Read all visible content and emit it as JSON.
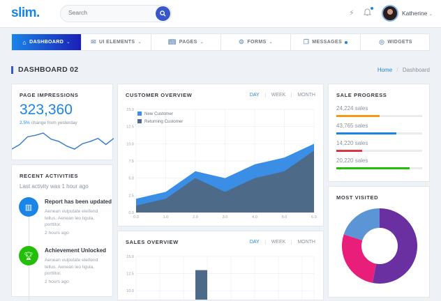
{
  "header": {
    "logo": "slim.",
    "search_placeholder": "Search",
    "user_name": "Katherine",
    "icons": [
      "search-icon",
      "lightning-icon",
      "bell-icon",
      "avatar",
      "chevron-down-icon"
    ]
  },
  "nav": {
    "items": [
      {
        "label": "DASHBOARD",
        "icon": "home-icon",
        "chevron": true,
        "active": true
      },
      {
        "label": "UI ELEMENTS",
        "icon": "envelope-icon",
        "chevron": true
      },
      {
        "label": "PAGES",
        "icon": "book-icon",
        "chevron": true
      },
      {
        "label": "FORMS",
        "icon": "gear-icon",
        "chevron": true
      },
      {
        "label": "MESSAGES",
        "icon": "chat-icon",
        "dot": true
      },
      {
        "label": "WIDGETS",
        "icon": "wave-icon"
      }
    ]
  },
  "page": {
    "title": "DASHBOARD 02",
    "breadcrumb": {
      "home": "Home",
      "sep": "/",
      "current": "Dashboard"
    }
  },
  "impressions": {
    "title": "PAGE IMPRESSIONS",
    "value": "323,360",
    "change_pct": "2.5%",
    "change_text": " change from yesterday",
    "sparkline": [
      30,
      36,
      46,
      48,
      51,
      43,
      40,
      34,
      30,
      37,
      40,
      44,
      36,
      44
    ]
  },
  "activities": {
    "title": "RECENT ACTIVITIES",
    "subtitle": "Last activity was 1 hour ago",
    "items": [
      {
        "title": "Report has been updated",
        "desc": "Aenean vulputate eleifend tellus. Aenean leo ligula, porttitor.",
        "time": "2 hours ago",
        "icon": "bar-chart-icon",
        "color": "#1b84e7"
      },
      {
        "title": "Achievement Unlocked",
        "desc": "Aenean vulputate eleifend tellus. Aenean leo ligula, porttitor.",
        "time": "2 hours ago",
        "icon": "trophy-icon",
        "color": "#23bf08"
      }
    ]
  },
  "customer_overview": {
    "title": "CUSTOMER OVERVIEW",
    "tabs": [
      "DAY",
      "WEEK",
      "MONTH"
    ],
    "legend": [
      "New Customer",
      "Returning Customer"
    ]
  },
  "sales_overview": {
    "title": "SALES OVERVIEW",
    "tabs": [
      "DAY",
      "WEEK",
      "MONTH"
    ]
  },
  "sale_progress": {
    "title": "SALE PROGRESS",
    "items": [
      {
        "label": "24,224 sales",
        "pct": 50,
        "color": "#f49917"
      },
      {
        "label": "43,765 sales",
        "pct": 70,
        "color": "#1b84e7"
      },
      {
        "label": "14,220 sales",
        "pct": 30,
        "color": "#dc3545"
      },
      {
        "label": "20,220 sales",
        "pct": 85,
        "color": "#23bf08"
      }
    ]
  },
  "most_visited": {
    "title": "MOST VISITED"
  },
  "chart_data": [
    {
      "type": "area",
      "title": "CUSTOMER OVERVIEW",
      "x": [
        0,
        1,
        2,
        3,
        4,
        5,
        6
      ],
      "xticks": [
        "0.0",
        "1.0",
        "2.0",
        "3.0",
        "4.0",
        "5.0",
        "6.0"
      ],
      "yticks": [
        "0.0",
        "2.5",
        "5.0",
        "7.5",
        "10.0",
        "12.5",
        "15.0"
      ],
      "ylim": [
        0,
        15
      ],
      "legend_position": "top-left",
      "grid": true,
      "series": [
        {
          "name": "New Customer",
          "color": "#3a8ee6",
          "values": [
            2,
            3,
            6,
            5,
            7,
            8,
            10
          ]
        },
        {
          "name": "Returning Customer",
          "color": "#4d6a88",
          "values": [
            1,
            2,
            5,
            3,
            5,
            6,
            9
          ]
        }
      ]
    },
    {
      "type": "bar",
      "title": "SALES OVERVIEW",
      "yticks": [
        "15.0",
        "12.5",
        "10.0"
      ],
      "ylim": [
        0,
        15
      ],
      "grid": true,
      "series": [
        {
          "name": "Sales",
          "color": "#4d6a88",
          "values": [
            null,
            null,
            13,
            null,
            null,
            null,
            null
          ]
        }
      ]
    },
    {
      "type": "pie",
      "title": "MOST VISITED",
      "donut": true,
      "slices": [
        {
          "value": 53,
          "color": "#6a2fa0"
        },
        {
          "value": 27,
          "color": "#e91e7a"
        },
        {
          "value": 20,
          "color": "#5b95d6"
        }
      ]
    }
  ]
}
